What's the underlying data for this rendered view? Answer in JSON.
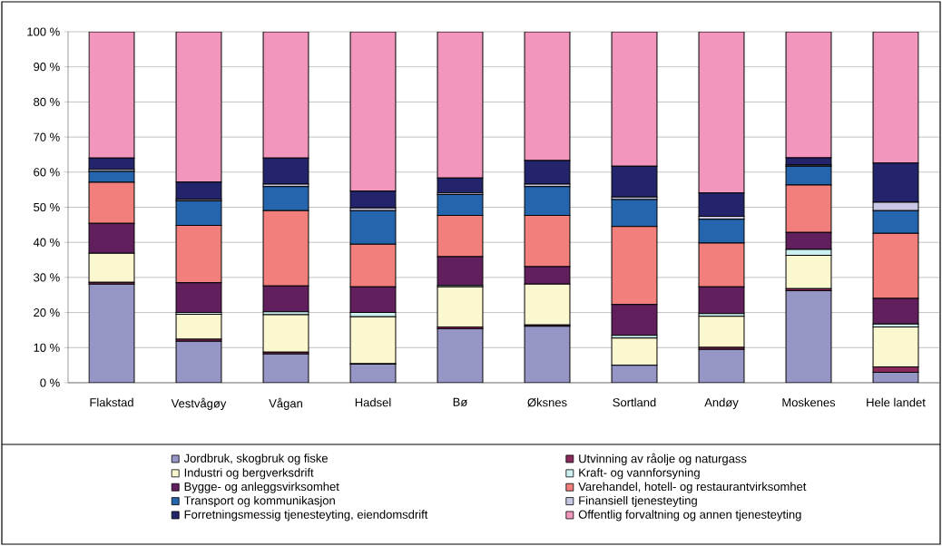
{
  "chart_data": {
    "type": "bar",
    "stacked": true,
    "grid": "y",
    "legend": "bottom",
    "categories": [
      "Flakstad",
      "Vestvågøy",
      "Vågan",
      "Hadsel",
      "Bø",
      "Øksnes",
      "Sortland",
      "Andøy",
      "Moskenes",
      "Hele landet"
    ],
    "ylim": [
      0,
      100
    ],
    "yticks": [
      {
        "value": 0,
        "label": "0 %"
      },
      {
        "value": 10,
        "label": "10 %"
      },
      {
        "value": 20,
        "label": "20 %"
      },
      {
        "value": 30,
        "label": "30 %"
      },
      {
        "value": 40,
        "label": "40 %"
      },
      {
        "value": 50,
        "label": "50 %"
      },
      {
        "value": 60,
        "label": "60 %"
      },
      {
        "value": 70,
        "label": "70 %"
      },
      {
        "value": 80,
        "label": "80 %"
      },
      {
        "value": 90,
        "label": "90 %"
      },
      {
        "value": 100,
        "label": "100 %"
      }
    ],
    "series": [
      {
        "name": "Jordbruk, skogbruk og fiske",
        "color": "#9595c6",
        "values": [
          28.1,
          11.8,
          8.2,
          5.3,
          15.4,
          16.1,
          5.0,
          9.5,
          26.2,
          3.0
        ]
      },
      {
        "name": "Utvinning av råolje og naturgass",
        "color": "#8b2a5a",
        "values": [
          0.5,
          0.6,
          0.5,
          0.1,
          0.5,
          0.4,
          null,
          0.6,
          0.6,
          1.5
        ]
      },
      {
        "name": "Industri og bergverksdrift",
        "color": "#fbf8d0",
        "values": [
          8.3,
          7.1,
          10.7,
          13.4,
          11.4,
          11.6,
          7.7,
          8.8,
          9.5,
          11.4
        ]
      },
      {
        "name": "Kraft- og vannforsyning",
        "color": "#ccf0f0",
        "values": [
          null,
          0.5,
          0.8,
          1.2,
          0.4,
          null,
          0.8,
          0.8,
          1.7,
          0.8
        ]
      },
      {
        "name": "Bygge- og anleggsvirksomhet",
        "color": "#621f5e",
        "values": [
          8.5,
          8.5,
          7.4,
          7.3,
          8.2,
          5.0,
          8.8,
          7.6,
          4.8,
          7.3
        ]
      },
      {
        "name": "Varehandel, hotell- og restaurantvirksomhet",
        "color": "#f27f7b",
        "values": [
          11.7,
          16.3,
          21.4,
          12.2,
          11.8,
          14.6,
          22.2,
          12.5,
          13.5,
          18.6
        ]
      },
      {
        "name": "Transport og kommunikasjon",
        "color": "#2565ad",
        "values": [
          3.1,
          7.0,
          6.9,
          9.5,
          5.9,
          8.2,
          7.7,
          6.8,
          5.4,
          6.4
        ]
      },
      {
        "name": "Finansiell tjenesteyting",
        "color": "#c8c8e4",
        "values": [
          0.6,
          0.4,
          0.7,
          0.8,
          0.5,
          0.7,
          0.7,
          0.8,
          0.3,
          2.4
        ]
      },
      {
        "name": "Forretningsmessig tjenesteyting, eiendomsdrift",
        "color": "#24246c",
        "values": [
          3.2,
          5.0,
          7.4,
          4.8,
          4.2,
          6.7,
          8.8,
          6.7,
          2.1,
          11.2
        ]
      },
      {
        "name": "Offentlig forvaltning og annen tjenesteyting",
        "color": "#f296be",
        "values": [
          36.0,
          42.8,
          36.0,
          45.4,
          41.7,
          36.7,
          38.3,
          45.9,
          35.9,
          37.4
        ]
      }
    ]
  }
}
